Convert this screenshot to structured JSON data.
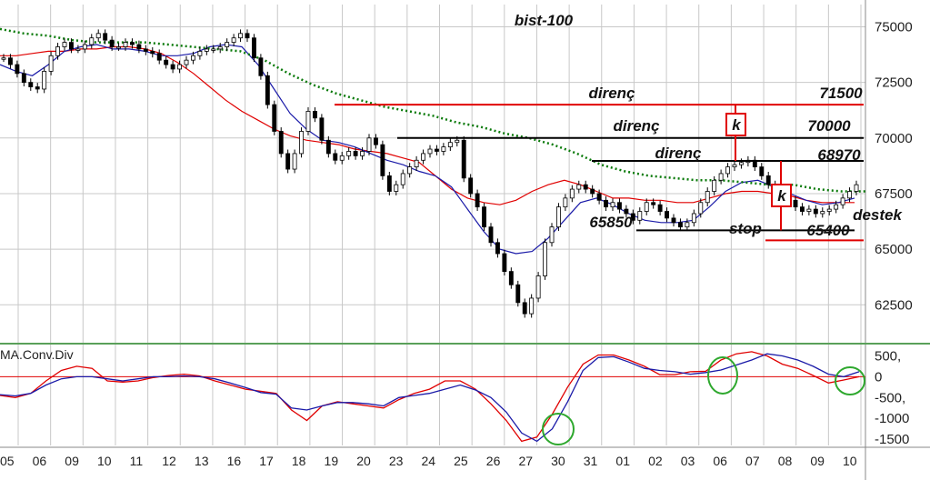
{
  "chart_data": [
    {
      "type": "candlestick",
      "title": "bist-100",
      "ylim": [
        61000,
        76000
      ],
      "y_ticks": [
        62500,
        65000,
        67500,
        70000,
        72500,
        75000
      ],
      "x_tick_labels": [
        "05",
        "06",
        "09",
        "10",
        "11",
        "12",
        "13",
        "16",
        "17",
        "18",
        "19",
        "20",
        "23",
        "24",
        "25",
        "26",
        "27",
        "30",
        "31",
        "01",
        "02",
        "03",
        "06",
        "07",
        "08",
        "09",
        "10"
      ],
      "grid": true,
      "series": [
        {
          "role": "price",
          "values": [
            73600,
            73300,
            72900,
            72500,
            72300,
            72200,
            73000,
            73700,
            74100,
            74300,
            74000,
            74000,
            74200,
            74500,
            74700,
            74400,
            74100,
            74100,
            74300,
            74200,
            74000,
            73900,
            73800,
            73500,
            73300,
            73100,
            73300,
            73500,
            73700,
            73900,
            74000,
            74000,
            74100,
            74300,
            74500,
            74700,
            74500,
            73600,
            72800,
            71500,
            70300,
            69300,
            68600,
            69300,
            70300,
            71200,
            70900,
            69900,
            69300,
            69000,
            69200,
            69400,
            69200,
            69400,
            70000,
            69700,
            68300,
            67600,
            67900,
            68400,
            68700,
            69000,
            69300,
            69500,
            69400,
            69600,
            69800,
            69900,
            68200,
            67500,
            66900,
            66000,
            65300,
            64800,
            64000,
            63400,
            62600,
            62100,
            62800,
            63800,
            65300,
            66000,
            66900,
            67300,
            67700,
            67900,
            67700,
            67500,
            67200,
            66900,
            67100,
            66800,
            66600,
            66300,
            66700,
            67100,
            67000,
            66700,
            66400,
            66200,
            66000,
            66200,
            66600,
            67100,
            67600,
            68100,
            68400,
            68700,
            68800,
            68900,
            69000,
            68700,
            68300,
            67900,
            67600,
            67400,
            67200,
            66900,
            66700,
            66800,
            66600,
            66700,
            66800,
            67000,
            67300,
            67600,
            67900
          ]
        },
        {
          "role": "ema-red",
          "values": [
            73700,
            73700,
            73800,
            73900,
            73900,
            74000,
            74000,
            74100,
            74100,
            74000,
            73800,
            73400,
            72900,
            72300,
            71700,
            71200,
            70800,
            70400,
            70100,
            69900,
            69800,
            69700,
            69500,
            69400,
            69300,
            69100,
            68900,
            68300,
            67700,
            67300,
            67100,
            67000,
            67200,
            67600,
            67900,
            68100,
            67900,
            67600,
            67300,
            67300,
            67200,
            67200,
            67100,
            67100,
            67300,
            67500,
            67600,
            67600,
            67500,
            67400,
            67200,
            67100,
            67100,
            67100
          ]
        },
        {
          "role": "ema-blue",
          "values": [
            73300,
            73000,
            72800,
            73300,
            73900,
            74100,
            74200,
            74000,
            74000,
            73900,
            73700,
            73700,
            73800,
            74100,
            74200,
            74100,
            73300,
            72200,
            71100,
            70400,
            69900,
            69800,
            69600,
            69300,
            69000,
            68800,
            68500,
            68300,
            67800,
            66800,
            65800,
            65000,
            64800,
            64900,
            65500,
            66300,
            67100,
            67300,
            67000,
            66600,
            66300,
            66200,
            66200,
            66300,
            66900,
            67600,
            68000,
            68100,
            67800,
            67500,
            67200,
            67000,
            67100,
            67300
          ]
        },
        {
          "role": "ma-green-dotted",
          "values": [
            74900,
            74700,
            74600,
            74400,
            74300,
            74300,
            74300,
            74200,
            74100,
            74000,
            73900,
            73500,
            72900,
            72400,
            72000,
            71700,
            71400,
            71200,
            71000,
            70700,
            70500,
            70200,
            70000,
            69700,
            69300,
            68800,
            68500,
            68300,
            68200,
            68100,
            68100,
            68000,
            67900,
            67900,
            67700,
            67600,
            67600
          ]
        }
      ],
      "annotations": [
        {
          "label": "direnç",
          "value_label": "71500",
          "level": 71500
        },
        {
          "label": "direnç",
          "value_label": "70000",
          "level": 70000
        },
        {
          "label": "direnç",
          "value_label": "68970",
          "level": 68970
        },
        {
          "label": "65850",
          "level": 65850
        },
        {
          "label": "destek",
          "level": 65850
        },
        {
          "label": "stop",
          "value_label": "65400",
          "level": 65400
        },
        {
          "label": "k"
        },
        {
          "label": "k"
        }
      ]
    },
    {
      "type": "line",
      "title": "MA.Conv.Div",
      "ylim": [
        -1650,
        750
      ],
      "y_ticks": [
        500,
        0,
        -500,
        -1000,
        -1500
      ],
      "y_tick_labels": [
        "500,",
        "0",
        "-500,",
        "-1000",
        "-1500"
      ],
      "series": [
        {
          "role": "macd-blue",
          "values": [
            -430,
            -460,
            -400,
            -200,
            -50,
            0,
            0,
            -50,
            -100,
            -50,
            0,
            0,
            20,
            0,
            -50,
            -150,
            -260,
            -380,
            -420,
            -750,
            -800,
            -700,
            -620,
            -620,
            -650,
            -700,
            -500,
            -450,
            -400,
            -300,
            -200,
            -320,
            -500,
            -850,
            -1350,
            -1550,
            -1250,
            -600,
            150,
            460,
            480,
            350,
            200,
            150,
            120,
            60,
            100,
            160,
            280,
            400,
            550,
            500,
            400,
            250,
            60,
            0,
            120
          ]
        },
        {
          "role": "signal-red",
          "values": [
            -450,
            -500,
            -400,
            -100,
            150,
            250,
            200,
            -100,
            -130,
            -100,
            -20,
            30,
            60,
            20,
            -100,
            -200,
            -300,
            -350,
            -400,
            -800,
            -1050,
            -700,
            -600,
            -650,
            -700,
            -750,
            -550,
            -400,
            -300,
            -100,
            -100,
            -300,
            -650,
            -1050,
            -1550,
            -1450,
            -900,
            -250,
            300,
            520,
            520,
            400,
            250,
            50,
            50,
            120,
            130,
            400,
            550,
            600,
            500,
            300,
            200,
            30,
            -150,
            -80,
            0
          ]
        }
      ],
      "reference_line": 0,
      "highlights": [
        "circle",
        "circle",
        "circle"
      ]
    }
  ],
  "colors": {
    "red": "#e00000",
    "blue": "#1a1aa8",
    "green": "#0a7a0a",
    "candle": "#000000",
    "grid": "#c8c8c8"
  }
}
